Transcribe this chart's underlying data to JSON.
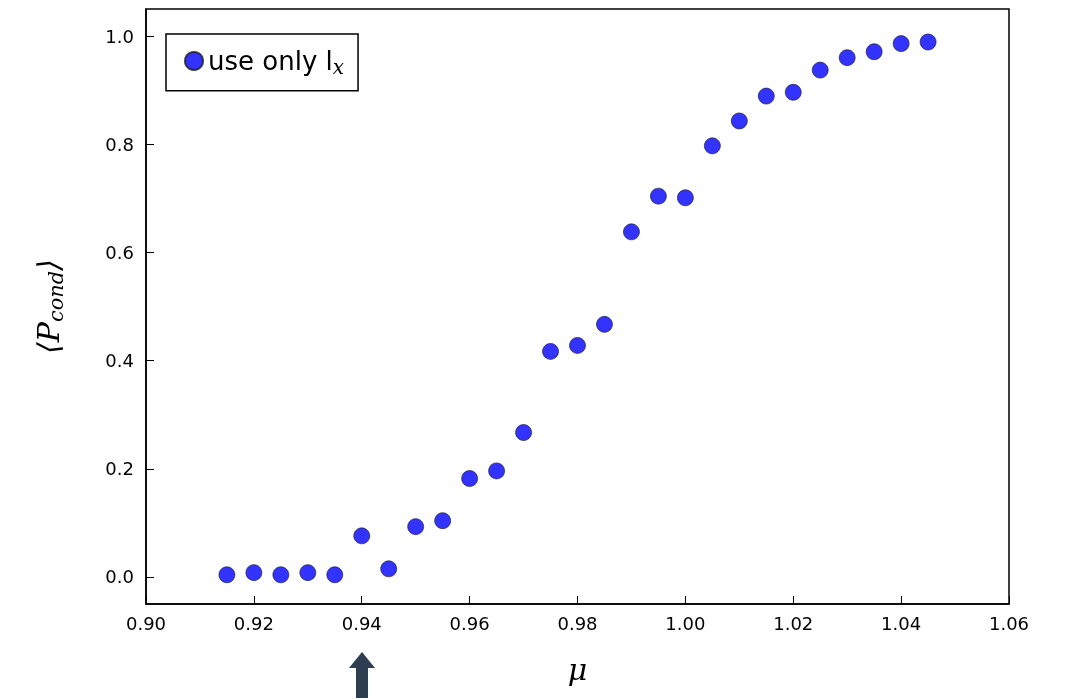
{
  "chart_data": {
    "type": "scatter",
    "xlabel": "μ",
    "ylabel": "⟨P$_{cond}$⟩",
    "x": [
      0.915,
      0.92,
      0.925,
      0.93,
      0.935,
      0.94,
      0.945,
      0.95,
      0.955,
      0.96,
      0.965,
      0.97,
      0.975,
      0.98,
      0.985,
      0.99,
      0.995,
      1.0,
      1.005,
      1.01,
      1.015,
      1.02,
      1.025,
      1.03,
      1.035,
      1.04,
      1.045
    ],
    "series": [
      {
        "name": "use only l$_{x}$",
        "color": "#0000ff",
        "values": [
          0.004,
          0.008,
          0.004,
          0.008,
          0.004,
          0.076,
          0.015,
          0.093,
          0.104,
          0.182,
          0.196,
          0.267,
          0.417,
          0.428,
          0.467,
          0.638,
          0.704,
          0.701,
          0.797,
          0.843,
          0.889,
          0.896,
          0.937,
          0.96,
          0.971,
          0.986,
          0.989
        ]
      }
    ],
    "xlim": [
      0.9,
      1.06
    ],
    "xticks": [
      {
        "value": 0.9,
        "label": "0.90"
      },
      {
        "value": 0.92,
        "label": "0.92"
      },
      {
        "value": 0.94,
        "label": "0.94"
      },
      {
        "value": 0.96,
        "label": "0.96"
      },
      {
        "value": 0.98,
        "label": "0.98"
      },
      {
        "value": 1.0,
        "label": "1.00"
      },
      {
        "value": 1.02,
        "label": "1.02"
      },
      {
        "value": 1.04,
        "label": "1.04"
      },
      {
        "value": 1.06,
        "label": "1.06"
      }
    ],
    "ylim": [
      -0.05,
      1.05
    ],
    "yticks": [
      {
        "value": 0,
        "label": "0.0"
      },
      0.2,
      0.4,
      0.6,
      0.8,
      {
        "value": 1,
        "label": "1.0"
      }
    ],
    "marker": "circle",
    "grid": false,
    "legend": "top left"
  }
}
